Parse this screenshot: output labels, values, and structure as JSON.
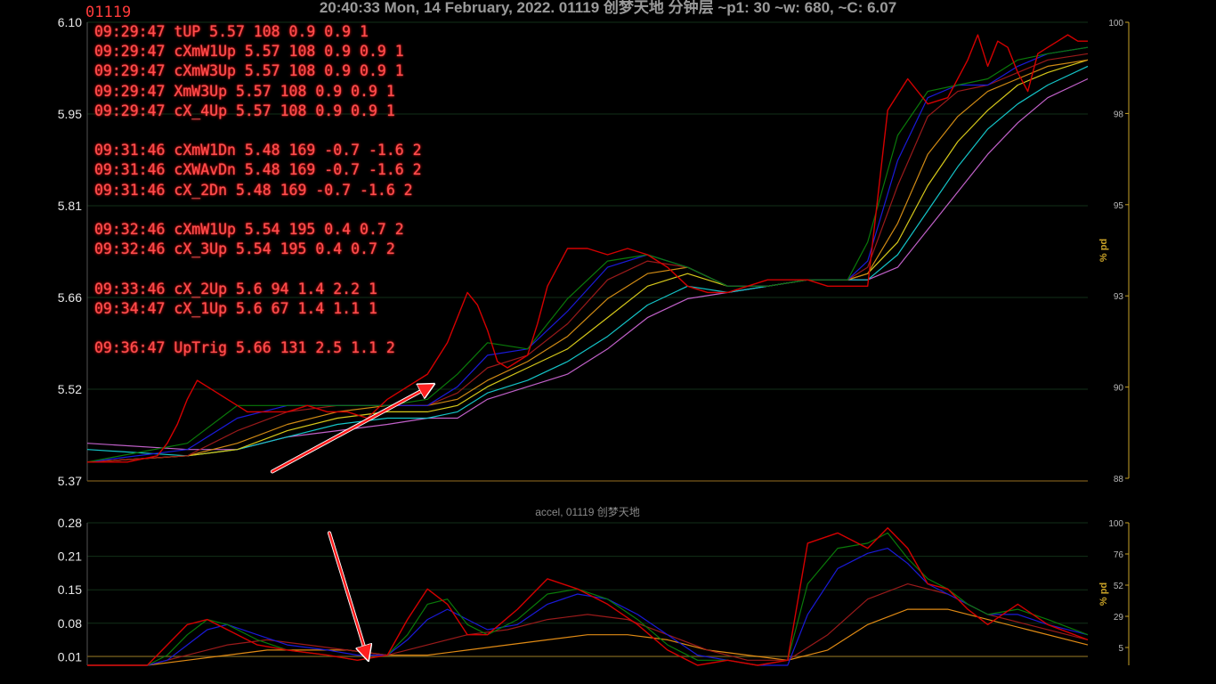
{
  "header": {
    "title": "20:40:33 Mon, 14 February, 2022. 01119 创梦天地 分钟层 ~p1: 30 ~w: 680, ~C: 6.07",
    "symbol_tag": "01119"
  },
  "alerts": [
    [
      "09:29:47 tUP 5.57 108 0.9 0.9 1",
      "09:29:47 cXmW1Up 5.57 108 0.9 0.9 1",
      "09:29:47 cXmW3Up 5.57 108 0.9 0.9 1",
      "09:29:47 XmW3Up 5.57 108 0.9 0.9 1",
      "09:29:47 cX_4Up 5.57 108 0.9 0.9 1"
    ],
    [
      "09:31:46 cXmW1Dn 5.48 169 -0.7 -1.6 2",
      "09:31:46 cXWAvDn 5.48 169 -0.7 -1.6 2",
      "09:31:46 cX_2Dn 5.48 169 -0.7 -1.6 2"
    ],
    [
      "09:32:46 cXmW1Up 5.54 195 0.4 0.7 2",
      "09:32:46 cX_3Up 5.54 195 0.4 0.7 2"
    ],
    [
      "09:33:46 cX_2Up 5.6 94 1.4 2.2 1",
      "09:34:47 cX_1Up 5.6 67 1.4 1.1 1"
    ],
    [
      "09:36:47 UpTrig 5.66 131 2.5 1.1 2"
    ]
  ],
  "chart_data": [
    {
      "type": "line",
      "title": "",
      "ylabel": "",
      "right_label": "% pd",
      "ylim": [
        5.37,
        6.1
      ],
      "yticks": [
        "6.10",
        "5.95",
        "5.81",
        "5.66",
        "5.52",
        "5.37"
      ],
      "right_ylim": [
        88,
        100
      ],
      "right_ticks": [
        "100",
        "98",
        "95",
        "93",
        "90",
        "88"
      ],
      "x_range": [
        0,
        100
      ],
      "grid": true,
      "colors": {
        "price": "#d40000",
        "ma1": "#0a7a0a",
        "ma2": "#1a1ad8",
        "ma3": "#9a1a1a",
        "ma4": "#d08a14",
        "ma5": "#d6c81a",
        "ma6": "#14c4c8",
        "ma7": "#c060c8"
      },
      "series": [
        {
          "key": "price",
          "x": [
            0,
            4,
            7,
            8,
            9,
            10,
            11,
            12,
            13,
            14,
            15,
            16,
            18,
            20,
            22,
            24,
            26,
            28,
            30,
            32,
            34,
            36,
            38,
            39,
            40,
            41,
            42,
            43,
            44,
            45,
            46,
            48,
            50,
            52,
            54,
            56,
            58,
            60,
            62,
            64,
            66,
            68,
            70,
            72,
            74,
            76,
            78,
            80,
            82,
            84,
            86,
            88,
            89,
            90,
            91,
            92,
            93,
            94,
            95,
            96,
            97,
            98,
            99,
            100
          ],
          "y": [
            5.4,
            5.4,
            5.41,
            5.43,
            5.46,
            5.5,
            5.53,
            5.52,
            5.51,
            5.5,
            5.49,
            5.48,
            5.48,
            5.48,
            5.49,
            5.48,
            5.48,
            5.47,
            5.5,
            5.52,
            5.54,
            5.59,
            5.67,
            5.65,
            5.61,
            5.56,
            5.55,
            5.56,
            5.57,
            5.62,
            5.68,
            5.74,
            5.74,
            5.73,
            5.74,
            5.73,
            5.71,
            5.68,
            5.67,
            5.67,
            5.68,
            5.69,
            5.69,
            5.69,
            5.68,
            5.68,
            5.68,
            5.96,
            6.01,
            5.97,
            5.98,
            6.04,
            6.08,
            6.03,
            6.07,
            6.06,
            6.02,
            5.99,
            6.05,
            6.06,
            6.07,
            6.08,
            6.07,
            6.07
          ]
        },
        {
          "key": "ma1",
          "x": [
            0,
            10,
            15,
            20,
            25,
            30,
            34,
            37,
            40,
            44,
            48,
            52,
            56,
            60,
            64,
            68,
            72,
            76,
            78,
            81,
            84,
            87,
            90,
            93,
            96,
            100
          ],
          "y": [
            5.4,
            5.43,
            5.49,
            5.49,
            5.49,
            5.49,
            5.5,
            5.54,
            5.59,
            5.58,
            5.66,
            5.72,
            5.73,
            5.71,
            5.68,
            5.68,
            5.69,
            5.69,
            5.75,
            5.92,
            5.99,
            6.0,
            6.01,
            6.04,
            6.05,
            6.06
          ]
        },
        {
          "key": "ma2",
          "x": [
            0,
            10,
            15,
            20,
            25,
            30,
            34,
            37,
            40,
            44,
            48,
            52,
            56,
            60,
            64,
            68,
            72,
            76,
            78,
            81,
            84,
            87,
            90,
            93,
            96,
            100
          ],
          "y": [
            5.4,
            5.42,
            5.47,
            5.49,
            5.49,
            5.49,
            5.49,
            5.52,
            5.57,
            5.58,
            5.64,
            5.71,
            5.73,
            5.71,
            5.68,
            5.68,
            5.69,
            5.69,
            5.72,
            5.88,
            5.98,
            6.0,
            6.0,
            6.03,
            6.05,
            6.06
          ]
        },
        {
          "key": "ma3",
          "x": [
            0,
            10,
            15,
            20,
            25,
            30,
            34,
            37,
            40,
            44,
            48,
            52,
            56,
            60,
            64,
            68,
            72,
            76,
            78,
            81,
            84,
            87,
            90,
            93,
            96,
            100
          ],
          "y": [
            5.4,
            5.41,
            5.45,
            5.48,
            5.49,
            5.49,
            5.49,
            5.51,
            5.55,
            5.57,
            5.62,
            5.69,
            5.72,
            5.71,
            5.68,
            5.68,
            5.69,
            5.69,
            5.71,
            5.84,
            5.95,
            5.99,
            6.0,
            6.02,
            6.04,
            6.05
          ]
        },
        {
          "key": "ma4",
          "x": [
            0,
            10,
            15,
            20,
            25,
            30,
            34,
            37,
            40,
            44,
            48,
            52,
            56,
            60,
            64,
            68,
            72,
            76,
            78,
            81,
            84,
            87,
            90,
            93,
            96,
            100
          ],
          "y": [
            5.4,
            5.41,
            5.43,
            5.46,
            5.48,
            5.49,
            5.49,
            5.5,
            5.53,
            5.56,
            5.6,
            5.66,
            5.7,
            5.71,
            5.68,
            5.68,
            5.69,
            5.69,
            5.7,
            5.78,
            5.89,
            5.95,
            5.99,
            6.01,
            6.03,
            6.04
          ]
        },
        {
          "key": "ma5",
          "x": [
            0,
            10,
            15,
            20,
            25,
            30,
            34,
            37,
            40,
            44,
            48,
            52,
            56,
            60,
            64,
            68,
            72,
            76,
            78,
            81,
            84,
            87,
            90,
            93,
            96,
            100
          ],
          "y": [
            5.4,
            5.41,
            5.42,
            5.45,
            5.47,
            5.48,
            5.48,
            5.49,
            5.52,
            5.55,
            5.58,
            5.63,
            5.68,
            5.7,
            5.68,
            5.68,
            5.69,
            5.69,
            5.7,
            5.75,
            5.84,
            5.91,
            5.96,
            6.0,
            6.02,
            6.04
          ]
        },
        {
          "key": "ma6",
          "x": [
            0,
            10,
            15,
            20,
            25,
            30,
            34,
            37,
            40,
            44,
            48,
            52,
            56,
            60,
            64,
            68,
            72,
            76,
            78,
            81,
            84,
            87,
            90,
            93,
            96,
            100
          ],
          "y": [
            5.42,
            5.41,
            5.42,
            5.44,
            5.46,
            5.47,
            5.47,
            5.48,
            5.51,
            5.53,
            5.56,
            5.6,
            5.65,
            5.68,
            5.67,
            5.68,
            5.69,
            5.69,
            5.69,
            5.73,
            5.8,
            5.87,
            5.93,
            5.97,
            6.0,
            6.03
          ]
        },
        {
          "key": "ma7",
          "x": [
            0,
            10,
            15,
            20,
            25,
            30,
            34,
            37,
            40,
            44,
            48,
            52,
            56,
            60,
            64,
            68,
            72,
            76,
            78,
            81,
            84,
            87,
            90,
            93,
            96,
            100
          ],
          "y": [
            5.43,
            5.42,
            5.42,
            5.44,
            5.45,
            5.46,
            5.47,
            5.47,
            5.5,
            5.52,
            5.54,
            5.58,
            5.63,
            5.66,
            5.67,
            5.68,
            5.69,
            5.69,
            5.69,
            5.71,
            5.77,
            5.83,
            5.89,
            5.94,
            5.98,
            6.01
          ]
        }
      ]
    },
    {
      "type": "line",
      "title": "accel, 01119 创梦天地",
      "ylabel": "",
      "right_label": "% pd",
      "ylim": [
        0.0,
        0.28
      ],
      "yticks": [
        "0.28",
        "0.21",
        "0.15",
        "0.08",
        "0.01"
      ],
      "right_ylim": [
        0,
        100
      ],
      "right_ticks": [
        "100",
        "76",
        "52",
        "29",
        "5"
      ],
      "x_range": [
        0,
        100
      ],
      "grid": true,
      "colors": {
        "a1": "#d40000",
        "a2": "#0a7a0a",
        "a3": "#1a1ad8",
        "a4": "#9a1a1a",
        "a5": "#e08a14"
      },
      "series": [
        {
          "key": "a1",
          "x": [
            0,
            6,
            8,
            10,
            12,
            14,
            17,
            20,
            24,
            27,
            30,
            32,
            34,
            36,
            38,
            40,
            43,
            46,
            49,
            52,
            55,
            58,
            61,
            64,
            67,
            70,
            72,
            75,
            78,
            80,
            82,
            84,
            86,
            88,
            90,
            93,
            96,
            100
          ],
          "y": [
            0.0,
            0.0,
            0.04,
            0.08,
            0.09,
            0.07,
            0.04,
            0.03,
            0.02,
            0.01,
            0.02,
            0.09,
            0.15,
            0.12,
            0.06,
            0.06,
            0.11,
            0.17,
            0.15,
            0.12,
            0.08,
            0.03,
            0.0,
            0.01,
            0.0,
            0.01,
            0.24,
            0.26,
            0.23,
            0.27,
            0.23,
            0.16,
            0.15,
            0.11,
            0.08,
            0.12,
            0.08,
            0.05
          ]
        },
        {
          "key": "a2",
          "x": [
            0,
            6,
            8,
            10,
            12,
            14,
            17,
            20,
            24,
            27,
            30,
            32,
            34,
            36,
            38,
            40,
            43,
            46,
            49,
            52,
            55,
            58,
            61,
            64,
            67,
            70,
            72,
            75,
            78,
            80,
            82,
            84,
            86,
            88,
            90,
            93,
            96,
            100
          ],
          "y": [
            0.0,
            0.0,
            0.02,
            0.06,
            0.09,
            0.08,
            0.05,
            0.03,
            0.02,
            0.01,
            0.02,
            0.06,
            0.12,
            0.13,
            0.08,
            0.06,
            0.09,
            0.14,
            0.15,
            0.13,
            0.09,
            0.04,
            0.01,
            0.01,
            0.0,
            0.01,
            0.16,
            0.23,
            0.24,
            0.26,
            0.21,
            0.17,
            0.15,
            0.12,
            0.1,
            0.11,
            0.09,
            0.06
          ]
        },
        {
          "key": "a3",
          "x": [
            0,
            6,
            8,
            10,
            12,
            14,
            17,
            20,
            24,
            27,
            30,
            32,
            34,
            36,
            38,
            40,
            43,
            46,
            49,
            52,
            55,
            58,
            61,
            64,
            67,
            70,
            72,
            75,
            78,
            80,
            82,
            84,
            86,
            88,
            90,
            93,
            96,
            100
          ],
          "y": [
            0.0,
            0.0,
            0.01,
            0.04,
            0.07,
            0.08,
            0.06,
            0.04,
            0.03,
            0.02,
            0.02,
            0.05,
            0.09,
            0.11,
            0.09,
            0.07,
            0.08,
            0.12,
            0.14,
            0.13,
            0.1,
            0.06,
            0.02,
            0.01,
            0.0,
            0.0,
            0.1,
            0.19,
            0.22,
            0.23,
            0.2,
            0.16,
            0.14,
            0.12,
            0.1,
            0.1,
            0.08,
            0.06
          ]
        },
        {
          "key": "a4",
          "x": [
            0,
            6,
            10,
            14,
            18,
            22,
            26,
            30,
            34,
            38,
            42,
            46,
            50,
            54,
            58,
            62,
            66,
            70,
            74,
            78,
            82,
            86,
            90,
            94,
            100
          ],
          "y": [
            0.0,
            0.0,
            0.02,
            0.04,
            0.05,
            0.04,
            0.03,
            0.02,
            0.04,
            0.06,
            0.07,
            0.09,
            0.1,
            0.09,
            0.06,
            0.03,
            0.01,
            0.01,
            0.06,
            0.13,
            0.16,
            0.14,
            0.1,
            0.08,
            0.05
          ]
        },
        {
          "key": "a5",
          "x": [
            0,
            6,
            10,
            14,
            18,
            22,
            26,
            30,
            34,
            38,
            42,
            46,
            50,
            54,
            58,
            62,
            66,
            70,
            74,
            78,
            82,
            86,
            90,
            94,
            100
          ],
          "y": [
            0.0,
            0.0,
            0.01,
            0.02,
            0.03,
            0.03,
            0.03,
            0.02,
            0.02,
            0.03,
            0.04,
            0.05,
            0.06,
            0.06,
            0.05,
            0.03,
            0.02,
            0.01,
            0.03,
            0.08,
            0.11,
            0.11,
            0.09,
            0.07,
            0.04
          ]
        }
      ]
    }
  ],
  "annotations": [
    {
      "name": "arrow-up",
      "from": [
        18.5,
        5.385
      ],
      "to": [
        34.4,
        5.522
      ],
      "panel": 0
    },
    {
      "name": "arrow-down",
      "from": [
        24.2,
        0.26
      ],
      "to": [
        28.0,
        0.015
      ],
      "panel": 1
    }
  ]
}
